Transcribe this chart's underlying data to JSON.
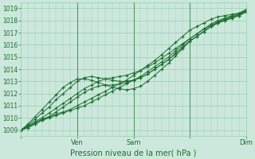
{
  "title": "",
  "xlabel": "Pression niveau de la mer( hPa )",
  "ylabel": "",
  "ylim": [
    1008.5,
    1019.5
  ],
  "xlim": [
    0,
    96
  ],
  "yticks": [
    1009,
    1010,
    1011,
    1012,
    1013,
    1014,
    1015,
    1016,
    1017,
    1018,
    1019
  ],
  "xtick_positions": [
    0,
    24,
    48,
    72,
    96
  ],
  "xtick_labels": [
    "",
    "Ven",
    "Sam",
    "",
    "Dim"
  ],
  "background_color": "#cce8dc",
  "grid_color": "#99ccb3",
  "line_color": "#1a6e2e",
  "marker_color": "#1a6e2e",
  "x_data": [
    0,
    3,
    6,
    9,
    12,
    15,
    18,
    21,
    24,
    27,
    30,
    33,
    36,
    39,
    42,
    45,
    48,
    51,
    54,
    57,
    60,
    63,
    66,
    69,
    72,
    75,
    78,
    81,
    84,
    87,
    90,
    93,
    96
  ],
  "lines": [
    [
      1009.0,
      1009.2,
      1009.5,
      1009.8,
      1010.0,
      1010.2,
      1010.4,
      1010.6,
      1010.8,
      1011.0,
      1011.3,
      1011.6,
      1011.9,
      1012.2,
      1012.5,
      1012.8,
      1013.1,
      1013.4,
      1013.8,
      1014.2,
      1014.6,
      1015.0,
      1015.5,
      1016.0,
      1016.5,
      1016.9,
      1017.3,
      1017.6,
      1017.9,
      1018.1,
      1018.3,
      1018.5,
      1018.8
    ],
    [
      1009.0,
      1009.3,
      1009.6,
      1009.9,
      1010.1,
      1010.3,
      1010.5,
      1010.7,
      1011.0,
      1011.3,
      1011.6,
      1011.9,
      1012.2,
      1012.5,
      1012.8,
      1013.1,
      1013.5,
      1013.9,
      1014.3,
      1014.7,
      1015.2,
      1015.7,
      1016.2,
      1016.7,
      1017.2,
      1017.5,
      1017.8,
      1018.1,
      1018.3,
      1018.4,
      1018.5,
      1018.6,
      1018.8
    ],
    [
      1009.0,
      1009.3,
      1009.7,
      1010.0,
      1010.4,
      1010.8,
      1011.2,
      1011.6,
      1012.0,
      1012.4,
      1012.7,
      1013.0,
      1013.2,
      1013.3,
      1013.4,
      1013.5,
      1013.7,
      1013.9,
      1014.2,
      1014.5,
      1014.9,
      1015.3,
      1015.7,
      1016.1,
      1016.5,
      1016.9,
      1017.3,
      1017.7,
      1018.0,
      1018.2,
      1018.4,
      1018.6,
      1018.9
    ],
    [
      1009.0,
      1009.2,
      1009.5,
      1009.8,
      1010.1,
      1010.5,
      1010.9,
      1011.3,
      1011.7,
      1012.1,
      1012.4,
      1012.6,
      1012.7,
      1012.7,
      1012.8,
      1012.9,
      1013.1,
      1013.3,
      1013.6,
      1014.0,
      1014.4,
      1014.8,
      1015.3,
      1015.8,
      1016.3,
      1016.7,
      1017.1,
      1017.5,
      1017.8,
      1018.1,
      1018.3,
      1018.5,
      1018.8
    ],
    [
      1009.0,
      1009.4,
      1009.9,
      1010.4,
      1010.9,
      1011.5,
      1012.0,
      1012.5,
      1013.0,
      1013.3,
      1013.4,
      1013.3,
      1013.2,
      1013.1,
      1013.0,
      1013.0,
      1013.1,
      1013.3,
      1013.6,
      1014.0,
      1014.4,
      1014.8,
      1015.3,
      1015.8,
      1016.3,
      1016.7,
      1017.1,
      1017.5,
      1017.8,
      1018.0,
      1018.2,
      1018.4,
      1018.7
    ],
    [
      1009.0,
      1009.5,
      1010.1,
      1010.7,
      1011.3,
      1011.9,
      1012.5,
      1012.9,
      1013.2,
      1013.2,
      1013.1,
      1012.9,
      1012.7,
      1012.5,
      1012.4,
      1012.3,
      1012.4,
      1012.6,
      1013.0,
      1013.5,
      1014.0,
      1014.5,
      1015.1,
      1015.7,
      1016.3,
      1016.7,
      1017.1,
      1017.5,
      1017.8,
      1018.0,
      1018.2,
      1018.4,
      1018.7
    ]
  ]
}
